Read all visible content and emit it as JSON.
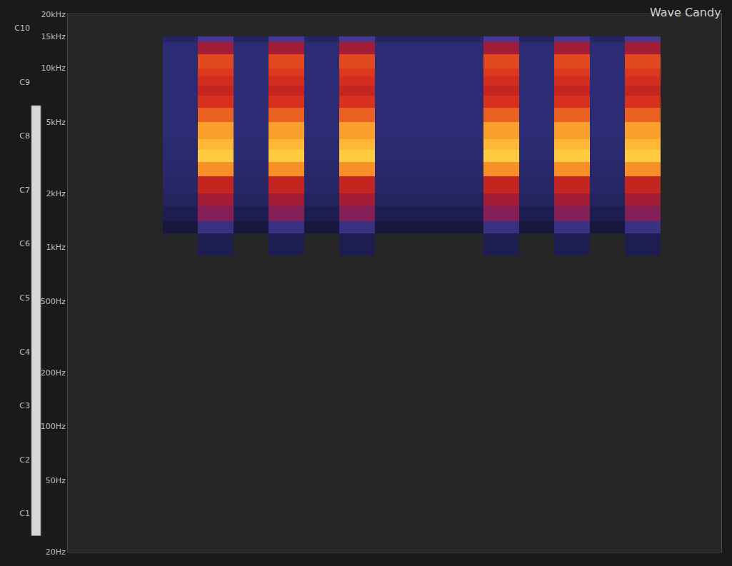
{
  "chart_data": {
    "type": "heatmap",
    "title": "Wave Candy",
    "log": "y",
    "grid": false,
    "tick_labels": "y",
    "xlim": [
      0,
      100
    ],
    "ylim": [
      20,
      20000
    ],
    "yticks": [
      {
        "value": 20000,
        "label": "20kHz"
      },
      {
        "value": 15000,
        "label": "15kHz"
      },
      {
        "value": 10000,
        "label": "10kHz"
      },
      {
        "value": 5000,
        "label": "5kHz"
      },
      {
        "value": 2000,
        "label": "2kHz"
      },
      {
        "value": 1000,
        "label": "1kHz"
      },
      {
        "value": 500,
        "label": "500Hz"
      },
      {
        "value": 200,
        "label": "200Hz"
      },
      {
        "value": 100,
        "label": "100Hz"
      },
      {
        "value": 50,
        "label": "50Hz"
      },
      {
        "value": 20,
        "label": "20Hz"
      }
    ],
    "y2lim": [
      20,
      20000
    ],
    "y2ticks": [
      {
        "value": 32.7,
        "label": "C1"
      },
      {
        "value": 65.41,
        "label": "C2"
      },
      {
        "value": 130.81,
        "label": "C3"
      },
      {
        "value": 261.63,
        "label": "C4"
      },
      {
        "value": 523.25,
        "label": "C5"
      },
      {
        "value": 1046.5,
        "label": "C6"
      },
      {
        "value": 2093,
        "label": "C7"
      },
      {
        "value": 4186.01,
        "label": "C8"
      },
      {
        "value": 8372.02,
        "label": "C9"
      },
      {
        "value": 16744.04,
        "label": "C10"
      }
    ],
    "x_bins": [
      0,
      14.5,
      19.9,
      25.4,
      30.7,
      36.2,
      41.5,
      47.0,
      63.6,
      69.1,
      74.4,
      79.9,
      85.2,
      90.7,
      100
    ],
    "y_bins": [
      20,
      900,
      1200,
      1400,
      1700,
      2000,
      2500,
      3000,
      3500,
      4000,
      5000,
      6000,
      7000,
      8000,
      9000,
      10000,
      12000,
      14000,
      15000,
      20000
    ],
    "zlim": [
      -100,
      0
    ],
    "cells": [
      [
        null,
        null,
        null,
        null,
        null,
        null,
        null,
        null,
        null,
        null,
        null,
        null,
        null,
        null
      ],
      [
        null,
        null,
        -76,
        null,
        -76,
        null,
        -76,
        null,
        -76,
        null,
        -76,
        null,
        -76,
        null
      ],
      [
        null,
        -80,
        -62,
        -80,
        -62,
        -80,
        -62,
        -80,
        -62,
        -80,
        -62,
        -80,
        -62,
        null
      ],
      [
        null,
        -76,
        -44,
        -76,
        -44,
        -76,
        -44,
        -76,
        -44,
        -76,
        -44,
        -76,
        -44,
        null
      ],
      [
        null,
        -73,
        -40,
        -73,
        -40,
        -73,
        -40,
        -73,
        -40,
        -73,
        -40,
        -73,
        -40,
        null
      ],
      [
        null,
        -71,
        -34,
        -71,
        -34,
        -71,
        -34,
        -71,
        -34,
        -71,
        -34,
        -71,
        -34,
        null
      ],
      [
        null,
        -70,
        -18,
        -70,
        -18,
        -70,
        -18,
        -70,
        -18,
        -70,
        -18,
        -70,
        -18,
        null
      ],
      [
        null,
        -69,
        -10,
        -69,
        -10,
        -69,
        -10,
        -69,
        -10,
        -69,
        -10,
        -69,
        -10,
        null
      ],
      [
        null,
        -69,
        -13,
        -69,
        -13,
        -69,
        -13,
        -69,
        -13,
        -69,
        -13,
        -69,
        -13,
        null
      ],
      [
        null,
        -68,
        -16,
        -68,
        -16,
        -68,
        -16,
        -68,
        -16,
        -68,
        -16,
        -68,
        -16,
        null
      ],
      [
        null,
        -68,
        -24,
        -68,
        -24,
        -68,
        -24,
        -68,
        -24,
        -68,
        -24,
        -68,
        -24,
        null
      ],
      [
        null,
        -68,
        -30,
        -68,
        -30,
        -68,
        -30,
        -68,
        -30,
        -68,
        -30,
        -68,
        -30,
        null
      ],
      [
        null,
        -68,
        -34,
        -68,
        -34,
        -68,
        -34,
        -68,
        -34,
        -68,
        -34,
        -68,
        -34,
        null
      ],
      [
        null,
        -68,
        -31,
        -68,
        -31,
        -68,
        -31,
        -68,
        -31,
        -68,
        -31,
        -68,
        -31,
        null
      ],
      [
        null,
        -68,
        -29,
        -68,
        -29,
        -68,
        -29,
        -68,
        -29,
        -68,
        -29,
        -68,
        -29,
        null
      ],
      [
        null,
        -68,
        -27,
        -68,
        -27,
        -68,
        -27,
        -68,
        -27,
        -68,
        -27,
        -68,
        -27,
        null
      ],
      [
        null,
        -68,
        -40,
        -68,
        -40,
        -68,
        -40,
        -68,
        -40,
        -68,
        -40,
        -68,
        -40,
        null
      ],
      [
        null,
        -72,
        -56,
        -72,
        -56,
        -72,
        -56,
        -72,
        -56,
        -72,
        -56,
        -72,
        -56,
        null
      ],
      [
        null,
        null,
        null,
        null,
        null,
        null,
        null,
        null,
        null,
        null,
        null,
        null,
        null,
        null
      ]
    ]
  }
}
